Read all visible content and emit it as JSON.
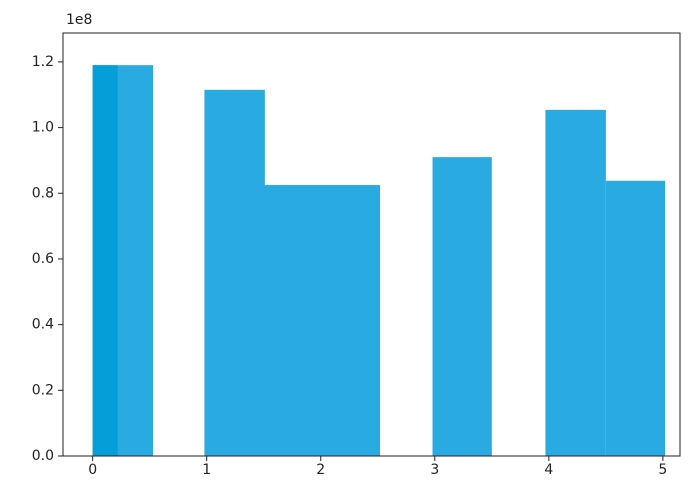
{
  "chart_data": {
    "type": "bar",
    "offset_label": "1e8",
    "series": [
      {
        "color": "#29abe2",
        "left": [
          0,
          0.98,
          1.49,
          2.98,
          3.97,
          4.5
        ],
        "right": [
          0.53,
          1.51,
          2.52,
          3.5,
          4.5,
          5.02
        ],
        "values": [
          119000000,
          111500000,
          82500000,
          91000000,
          105400000,
          83800000
        ]
      },
      {
        "color": "#049fd9",
        "left": [
          0
        ],
        "right": [
          0.22
        ],
        "values": [
          119000000
        ]
      }
    ],
    "xlim": [
      -0.26,
      5.15
    ],
    "xticks": [
      0,
      1,
      2,
      3,
      4,
      5
    ],
    "ylim": [
      0,
      128800000
    ],
    "yticks": [
      {
        "value": 0,
        "label": "0.0"
      },
      {
        "value": 20000000,
        "label": "0.2"
      },
      {
        "value": 40000000,
        "label": "0.4"
      },
      {
        "value": 60000000,
        "label": "0.6"
      },
      {
        "value": 80000000,
        "label": "0.8"
      },
      {
        "value": 100000000,
        "label": "1.0"
      },
      {
        "value": 120000000,
        "label": "1.2"
      }
    ],
    "grid": false
  }
}
